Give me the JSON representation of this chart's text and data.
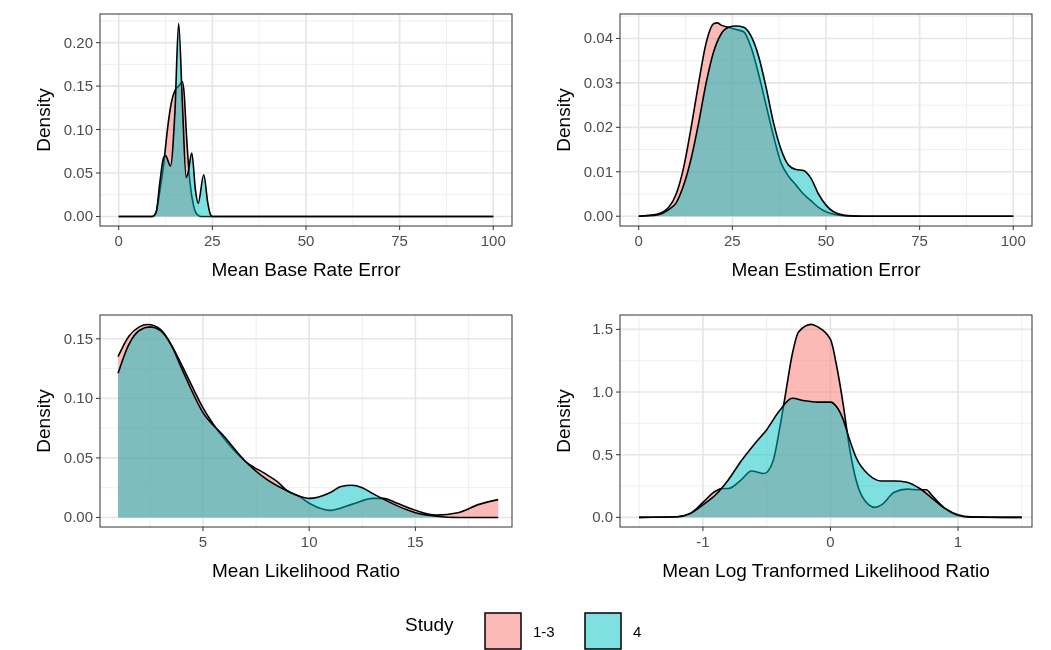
{
  "chart_data": [
    {
      "type": "area",
      "xlabel": "Mean Base Rate Error",
      "ylabel": "Density",
      "xlim": [
        -5,
        105
      ],
      "ylim": [
        -0.011,
        0.233
      ],
      "xticks": [
        0,
        25,
        50,
        75,
        100
      ],
      "yticks": [
        {
          "value": 0,
          "label": "0.00"
        },
        {
          "value": 0.05,
          "label": "0.05"
        },
        {
          "value": 0.1,
          "label": "0.10"
        },
        {
          "value": 0.15,
          "label": "0.15"
        },
        {
          "value": 0.2,
          "label": "0.20"
        }
      ],
      "grid": true,
      "legend": "bottom",
      "legend_title": "Study",
      "series": [
        {
          "name": "1-3",
          "color": "#f8766d",
          "x": [
            0,
            9,
            10,
            11,
            12,
            13,
            14,
            15,
            16,
            17,
            17.5,
            18,
            19,
            20,
            21,
            22,
            100
          ],
          "values": [
            0,
            0,
            0.005,
            0.03,
            0.06,
            0.1,
            0.13,
            0.145,
            0.15,
            0.155,
            0.14,
            0.1,
            0.04,
            0.012,
            0.002,
            0,
            0
          ]
        },
        {
          "name": "4",
          "color": "#00bfc4",
          "x": [
            0,
            9,
            10,
            11,
            12,
            12.5,
            13.8,
            15,
            16,
            17,
            18,
            18.5,
            19.5,
            20.5,
            21.2,
            22.7,
            23.8,
            24.5,
            25,
            100
          ],
          "values": [
            0,
            0,
            0.005,
            0.04,
            0.068,
            0.07,
            0.058,
            0.12,
            0.222,
            0.13,
            0.045,
            0.05,
            0.073,
            0.03,
            0.015,
            0.048,
            0.015,
            0.002,
            0,
            0
          ]
        }
      ]
    },
    {
      "type": "area",
      "xlabel": "Mean Estimation Error",
      "ylabel": "Density",
      "xlim": [
        -5,
        105
      ],
      "ylim": [
        -0.0022,
        0.0455
      ],
      "xticks": [
        0,
        25,
        50,
        75,
        100
      ],
      "yticks": [
        {
          "value": 0,
          "label": "0.00"
        },
        {
          "value": 0.01,
          "label": "0.01"
        },
        {
          "value": 0.02,
          "label": "0.02"
        },
        {
          "value": 0.03,
          "label": "0.03"
        },
        {
          "value": 0.04,
          "label": "0.04"
        }
      ],
      "grid": true,
      "series": [
        {
          "color": "#f8766d",
          "x": [
            0,
            5,
            8,
            10,
            12,
            14,
            16,
            18,
            20,
            21,
            22,
            24,
            26,
            28,
            30,
            32,
            34,
            36,
            38,
            40,
            42,
            44,
            46,
            48,
            50,
            55,
            60,
            100
          ],
          "values": [
            0,
            0.0005,
            0.002,
            0.005,
            0.011,
            0.02,
            0.03,
            0.039,
            0.0433,
            0.0435,
            0.043,
            0.0425,
            0.042,
            0.0415,
            0.038,
            0.032,
            0.025,
            0.018,
            0.012,
            0.009,
            0.007,
            0.005,
            0.0035,
            0.002,
            0.001,
            0.0001,
            0,
            0
          ]
        },
        {
          "color": "#00bfc4",
          "x": [
            0,
            5,
            8,
            10,
            12,
            14,
            16,
            18,
            20,
            22,
            24,
            26,
            28,
            30,
            32,
            34,
            36,
            38,
            40,
            42,
            44,
            46,
            48,
            50,
            52,
            55,
            60,
            100
          ],
          "values": [
            0,
            0.0003,
            0.0015,
            0.003,
            0.007,
            0.013,
            0.021,
            0.03,
            0.037,
            0.041,
            0.0425,
            0.0428,
            0.0425,
            0.0405,
            0.036,
            0.029,
            0.021,
            0.015,
            0.0115,
            0.0105,
            0.0103,
            0.0085,
            0.005,
            0.0025,
            0.001,
            0.0002,
            0,
            0
          ]
        }
      ]
    },
    {
      "type": "area",
      "xlabel": "Mean Likelihood Ratio",
      "ylabel": "Density",
      "xlim": [
        0.15,
        19.55
      ],
      "ylim": [
        -0.008,
        0.17
      ],
      "xticks": [
        5,
        10,
        15
      ],
      "yticks": [
        {
          "value": 0,
          "label": "0.00"
        },
        {
          "value": 0.05,
          "label": "0.05"
        },
        {
          "value": 0.1,
          "label": "0.10"
        },
        {
          "value": 0.15,
          "label": "0.15"
        }
      ],
      "grid": true,
      "series": [
        {
          "color": "#f8766d",
          "x": [
            1,
            1.5,
            2,
            2.4,
            3,
            3.5,
            4,
            5,
            6,
            7,
            8,
            8.5,
            9,
            9.5,
            10,
            11,
            12,
            13,
            13.5,
            14,
            15,
            16,
            17,
            18,
            18.9
          ],
          "values": [
            0.135,
            0.152,
            0.16,
            0.162,
            0.158,
            0.145,
            0.128,
            0.092,
            0.066,
            0.047,
            0.036,
            0.03,
            0.022,
            0.018,
            0.012,
            0.006,
            0.011,
            0.016,
            0.016,
            0.013,
            0.006,
            0.002,
            0.004,
            0.011,
            0.015
          ]
        },
        {
          "color": "#00bfc4",
          "x": [
            1,
            1.5,
            2,
            2.5,
            3,
            3.5,
            4,
            5,
            6,
            7,
            8,
            9,
            9.5,
            10,
            11,
            11.5,
            12,
            12.5,
            13,
            14,
            15,
            16,
            17,
            18,
            18.9
          ],
          "values": [
            0.121,
            0.145,
            0.157,
            0.16,
            0.157,
            0.145,
            0.125,
            0.088,
            0.068,
            0.047,
            0.032,
            0.022,
            0.018,
            0.016,
            0.021,
            0.026,
            0.027,
            0.025,
            0.02,
            0.011,
            0.004,
            0.001,
            0,
            0,
            0
          ]
        }
      ]
    },
    {
      "type": "area",
      "xlabel": "Mean Log Tranformed Likelihood Ratio",
      "ylabel": "Density",
      "xlim": [
        -1.65,
        1.58
      ],
      "ylim": [
        -0.077,
        1.615
      ],
      "xticks": [
        -1,
        0,
        1
      ],
      "yticks": [
        {
          "value": 0,
          "label": "0.0"
        },
        {
          "value": 0.5,
          "label": "0.5"
        },
        {
          "value": 1,
          "label": "1.0"
        },
        {
          "value": 1.5,
          "label": "1.5"
        }
      ],
      "grid": true,
      "series": [
        {
          "color": "#f8766d",
          "x": [
            -1.5,
            -1.2,
            -1.1,
            -1,
            -0.9,
            -0.85,
            -0.8,
            -0.7,
            -0.62,
            -0.52,
            -0.45,
            -0.4,
            -0.35,
            -0.3,
            -0.25,
            -0.15,
            -0.1,
            0,
            0.05,
            0.1,
            0.15,
            0.2,
            0.3,
            0.35,
            0.4,
            0.5,
            0.6,
            0.7,
            0.75,
            0.8,
            0.9,
            1,
            1.1,
            1.5
          ],
          "values": [
            0,
            0.005,
            0.03,
            0.12,
            0.21,
            0.23,
            0.23,
            0.3,
            0.37,
            0.35,
            0.45,
            0.7,
            1,
            1.3,
            1.48,
            1.54,
            1.52,
            1.42,
            1.2,
            0.9,
            0.55,
            0.3,
            0.1,
            0.08,
            0.1,
            0.2,
            0.225,
            0.22,
            0.22,
            0.17,
            0.07,
            0.015,
            0.002,
            0
          ]
        },
        {
          "color": "#00bfc4",
          "x": [
            -1.5,
            -1.2,
            -1.1,
            -1,
            -0.9,
            -0.8,
            -0.7,
            -0.6,
            -0.5,
            -0.4,
            -0.3,
            -0.2,
            -0.1,
            0,
            0.05,
            0.1,
            0.15,
            0.2,
            0.3,
            0.4,
            0.5,
            0.6,
            0.7,
            0.8,
            0.9,
            1,
            1.1,
            1.5
          ],
          "values": [
            0,
            0.005,
            0.03,
            0.1,
            0.18,
            0.3,
            0.45,
            0.58,
            0.7,
            0.85,
            0.95,
            0.93,
            0.92,
            0.92,
            0.88,
            0.78,
            0.62,
            0.48,
            0.34,
            0.29,
            0.29,
            0.28,
            0.23,
            0.15,
            0.07,
            0.02,
            0.004,
            0
          ]
        }
      ]
    }
  ]
}
